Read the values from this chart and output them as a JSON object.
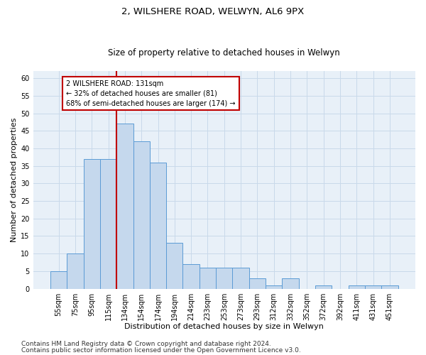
{
  "title1": "2, WILSHERE ROAD, WELWYN, AL6 9PX",
  "title2": "Size of property relative to detached houses in Welwyn",
  "xlabel": "Distribution of detached houses by size in Welwyn",
  "ylabel": "Number of detached properties",
  "categories": [
    "55sqm",
    "75sqm",
    "95sqm",
    "115sqm",
    "134sqm",
    "154sqm",
    "174sqm",
    "194sqm",
    "214sqm",
    "233sqm",
    "253sqm",
    "273sqm",
    "293sqm",
    "312sqm",
    "332sqm",
    "352sqm",
    "372sqm",
    "392sqm",
    "411sqm",
    "431sqm",
    "451sqm"
  ],
  "values": [
    5,
    10,
    37,
    37,
    47,
    42,
    36,
    13,
    7,
    6,
    6,
    6,
    3,
    1,
    3,
    0,
    1,
    0,
    1,
    1,
    1
  ],
  "bar_color": "#c5d8ed",
  "bar_edge_color": "#5b9bd5",
  "vline_x_index": 4,
  "vline_color": "#c00000",
  "annotation_text": "2 WILSHERE ROAD: 131sqm\n← 32% of detached houses are smaller (81)\n68% of semi-detached houses are larger (174) →",
  "annotation_box_color": "#ffffff",
  "annotation_box_edge_color": "#c00000",
  "ylim": [
    0,
    62
  ],
  "yticks": [
    0,
    5,
    10,
    15,
    20,
    25,
    30,
    35,
    40,
    45,
    50,
    55,
    60
  ],
  "grid_color": "#c9d9ea",
  "background_color": "#e8f0f8",
  "footnote1": "Contains HM Land Registry data © Crown copyright and database right 2024.",
  "footnote2": "Contains public sector information licensed under the Open Government Licence v3.0.",
  "title1_fontsize": 9.5,
  "title2_fontsize": 8.5,
  "xlabel_fontsize": 8,
  "ylabel_fontsize": 8,
  "tick_fontsize": 7,
  "annot_fontsize": 7,
  "footnote_fontsize": 6.5
}
